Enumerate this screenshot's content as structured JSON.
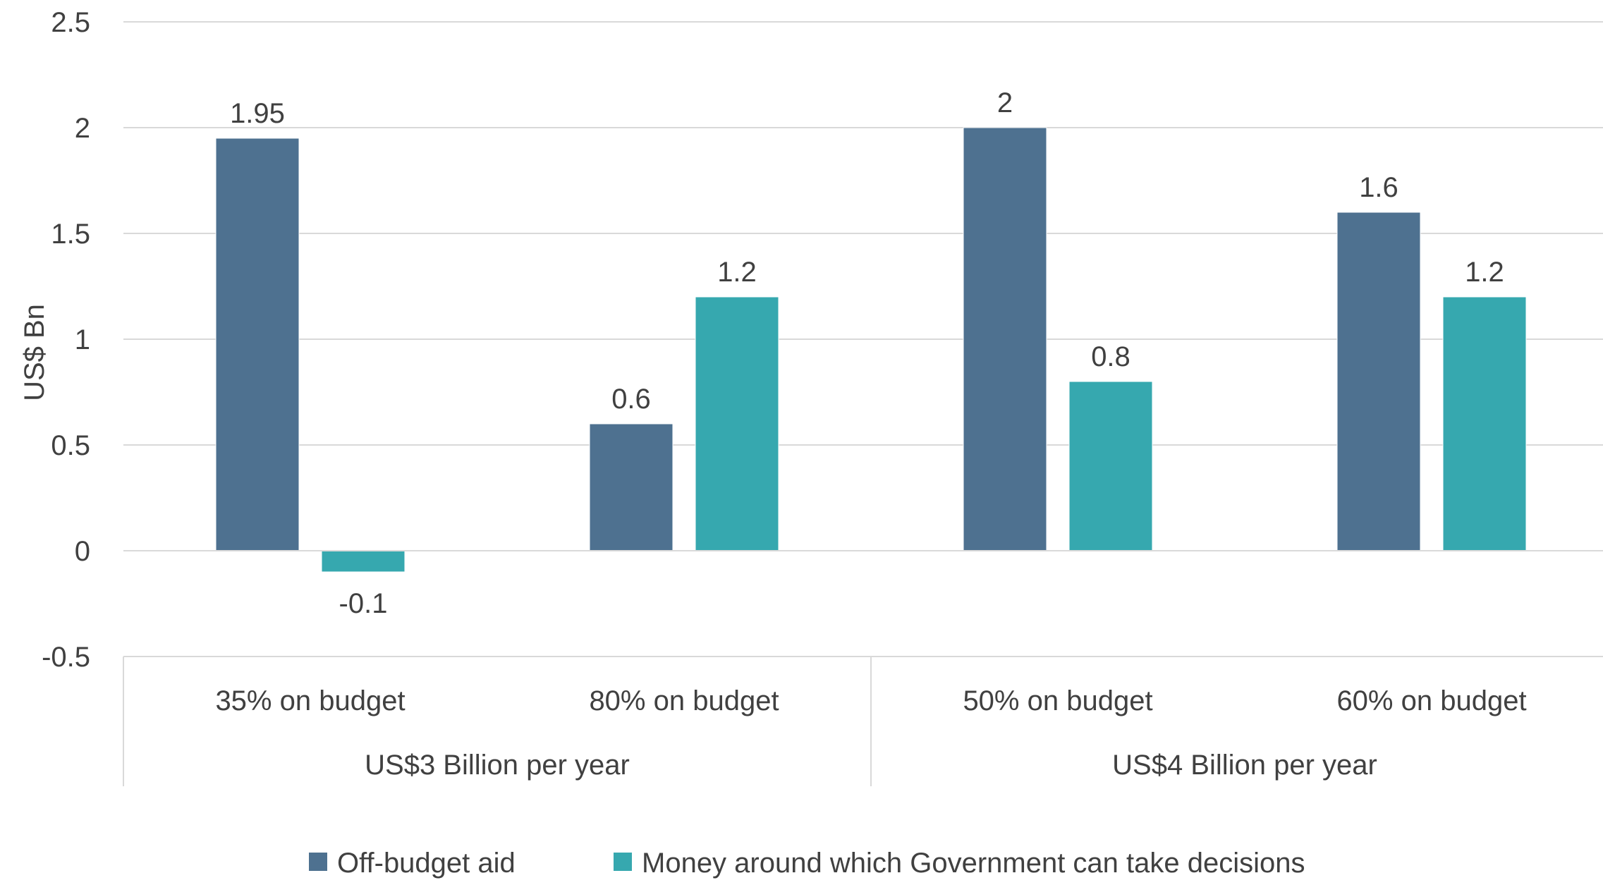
{
  "chart_data": {
    "type": "bar",
    "title": "",
    "ylabel": "US$ Bn",
    "xlabel": "",
    "ylim": [
      -0.5,
      2.5
    ],
    "yticks": [
      "-0.5",
      "0",
      "0.5",
      "1",
      "1.5",
      "2",
      "2.5"
    ],
    "grid": true,
    "legend_position": "bottom",
    "categories": [
      "35% on budget",
      "80% on budget",
      "50% on budget",
      "60% on budget"
    ],
    "groups": [
      {
        "label": "US$3 Billion per year",
        "span": [
          0,
          1
        ]
      },
      {
        "label": "US$4 Billion per year",
        "span": [
          2,
          3
        ]
      }
    ],
    "series": [
      {
        "name": "Off-budget aid",
        "color": "#4E7190",
        "values": [
          1.95,
          0.6,
          2,
          1.6
        ],
        "labels": [
          "1.95",
          "0.6",
          "2",
          "1.6"
        ]
      },
      {
        "name": "Money around which Government can take decisions",
        "color": "#36A8AF",
        "values": [
          -0.1,
          1.2,
          0.8,
          1.2
        ],
        "labels": [
          "-0.1",
          "1.2",
          "0.8",
          "1.2"
        ]
      }
    ]
  }
}
